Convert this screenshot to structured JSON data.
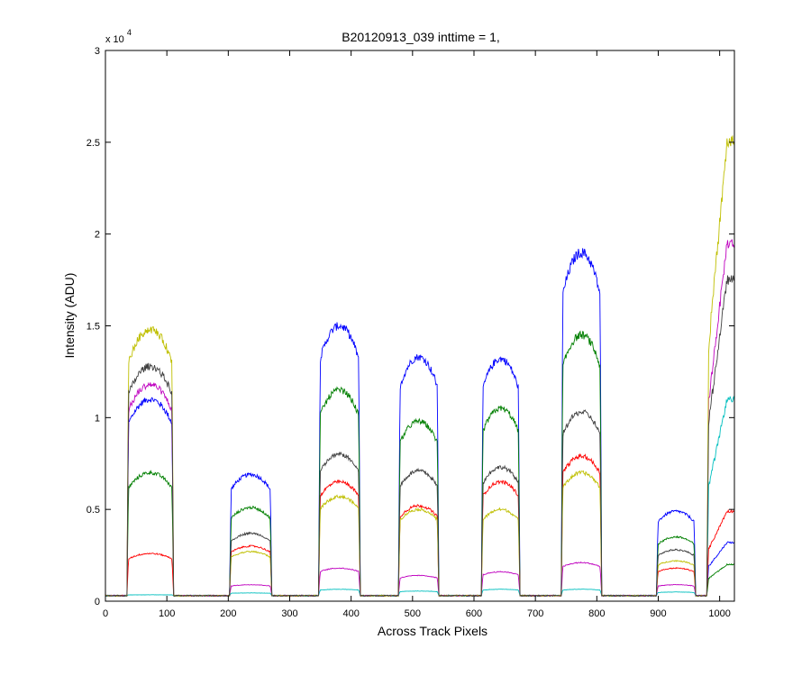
{
  "chart_data": {
    "type": "line",
    "title": "B20120913_039 inttime = 1,",
    "xlabel": "Across Track Pixels",
    "ylabel": "Intensity (ADU)",
    "y_multiplier": {
      "base": "x 10",
      "exponent": "4"
    },
    "xlim": [
      0,
      1024
    ],
    "ylim": [
      0,
      30000
    ],
    "x_ticks": [
      0,
      100,
      200,
      300,
      400,
      500,
      600,
      700,
      800,
      900,
      1000
    ],
    "x_tick_labels": [
      "0",
      "100",
      "200",
      "300",
      "400",
      "500",
      "600",
      "700",
      "800",
      "900",
      "1000"
    ],
    "y_ticks": [
      0,
      5000,
      10000,
      15000,
      20000,
      25000,
      30000
    ],
    "y_tick_labels": [
      "0",
      "0.5",
      "1",
      "1.5",
      "2",
      "2.5",
      "3"
    ],
    "grid": false,
    "legend": "none",
    "baseline": 300,
    "bands": [
      {
        "start": 38,
        "end": 108
      },
      {
        "start": 205,
        "end": 268
      },
      {
        "start": 350,
        "end": 412
      },
      {
        "start": 480,
        "end": 540
      },
      {
        "start": 615,
        "end": 672
      },
      {
        "start": 745,
        "end": 805
      },
      {
        "start": 900,
        "end": 958
      },
      {
        "start": 982,
        "end": 1024
      }
    ],
    "series": [
      {
        "color": "#0000ff",
        "values": [
          11000,
          6900,
          15000,
          13300,
          13200,
          19000,
          4900,
          3200
        ]
      },
      {
        "color": "#007f00",
        "values": [
          7000,
          5100,
          11500,
          9800,
          10500,
          14500,
          3500,
          2000
        ]
      },
      {
        "color": "#ff0000",
        "values": [
          2600,
          3000,
          6500,
          5200,
          6500,
          7900,
          1800,
          4900
        ]
      },
      {
        "color": "#00bfbf",
        "values": [
          350,
          450,
          650,
          550,
          650,
          650,
          500,
          11000
        ]
      },
      {
        "color": "#bf00bf",
        "values": [
          11800,
          900,
          1800,
          1400,
          1600,
          2100,
          900,
          19500
        ]
      },
      {
        "color": "#bfbf00",
        "values": [
          14800,
          2700,
          5700,
          5000,
          5000,
          7000,
          2200,
          25000
        ]
      },
      {
        "color": "#3f3f3f",
        "values": [
          12800,
          3700,
          8000,
          7100,
          7300,
          10300,
          2800,
          17500
        ]
      }
    ]
  }
}
